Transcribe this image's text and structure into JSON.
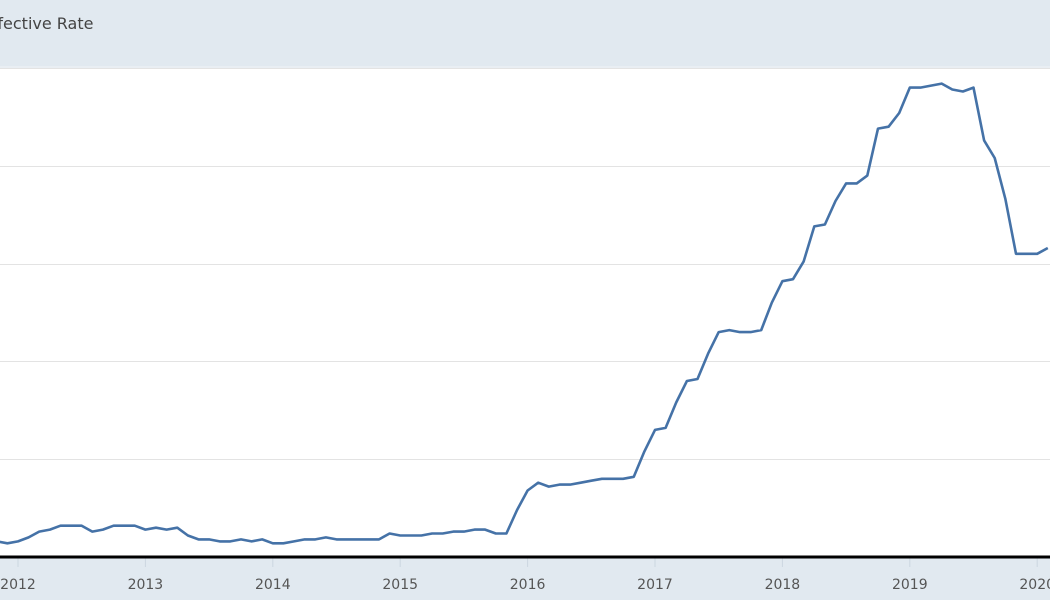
{
  "header": {
    "title": "ffective Rate"
  },
  "chart_data": {
    "type": "line",
    "title": "ffective Rate",
    "xlabel": "",
    "ylabel": "",
    "ylim": [
      0,
      2.5
    ],
    "y_gridlines": [
      0.5,
      1.0,
      1.5,
      2.0,
      2.5
    ],
    "grid": true,
    "line_color": "#4572a7",
    "x_ticks": [
      "2012",
      "2013",
      "2014",
      "2015",
      "2016",
      "2017",
      "2018",
      "2019",
      "2020"
    ],
    "series": [
      {
        "x": [
          "2011-11",
          "2011-12",
          "2012-01",
          "2012-02",
          "2012-03",
          "2012-04",
          "2012-05",
          "2012-06",
          "2012-07",
          "2012-08",
          "2012-09",
          "2012-10",
          "2012-11",
          "2012-12",
          "2013-01",
          "2013-02",
          "2013-03",
          "2013-04",
          "2013-05",
          "2013-06",
          "2013-07",
          "2013-08",
          "2013-09",
          "2013-10",
          "2013-11",
          "2013-12",
          "2014-01",
          "2014-02",
          "2014-03",
          "2014-04",
          "2014-05",
          "2014-06",
          "2014-07",
          "2014-08",
          "2014-09",
          "2014-10",
          "2014-11",
          "2014-12",
          "2015-01",
          "2015-02",
          "2015-03",
          "2015-04",
          "2015-05",
          "2015-06",
          "2015-07",
          "2015-08",
          "2015-09",
          "2015-10",
          "2015-11",
          "2015-12",
          "2016-01",
          "2016-02",
          "2016-03",
          "2016-04",
          "2016-05",
          "2016-06",
          "2016-07",
          "2016-08",
          "2016-09",
          "2016-10",
          "2016-11",
          "2016-12",
          "2017-01",
          "2017-02",
          "2017-03",
          "2017-04",
          "2017-05",
          "2017-06",
          "2017-07",
          "2017-08",
          "2017-09",
          "2017-10",
          "2017-11",
          "2017-12",
          "2018-01",
          "2018-02",
          "2018-03",
          "2018-04",
          "2018-05",
          "2018-06",
          "2018-07",
          "2018-08",
          "2018-09",
          "2018-10",
          "2018-11",
          "2018-12",
          "2019-01",
          "2019-02",
          "2019-03",
          "2019-04",
          "2019-05",
          "2019-06",
          "2019-07",
          "2019-08",
          "2019-09",
          "2019-10",
          "2019-11",
          "2019-12",
          "2020-01",
          "2020-02"
        ],
        "values": [
          0.08,
          0.07,
          0.08,
          0.1,
          0.13,
          0.14,
          0.16,
          0.16,
          0.16,
          0.13,
          0.14,
          0.16,
          0.16,
          0.16,
          0.14,
          0.15,
          0.14,
          0.15,
          0.11,
          0.09,
          0.09,
          0.08,
          0.08,
          0.09,
          0.08,
          0.09,
          0.07,
          0.07,
          0.08,
          0.09,
          0.09,
          0.1,
          0.09,
          0.09,
          0.09,
          0.09,
          0.09,
          0.12,
          0.11,
          0.11,
          0.11,
          0.12,
          0.12,
          0.13,
          0.13,
          0.14,
          0.14,
          0.12,
          0.12,
          0.24,
          0.34,
          0.38,
          0.36,
          0.37,
          0.37,
          0.38,
          0.39,
          0.4,
          0.4,
          0.4,
          0.41,
          0.54,
          0.65,
          0.66,
          0.79,
          0.9,
          0.91,
          1.04,
          1.15,
          1.16,
          1.15,
          1.15,
          1.16,
          1.3,
          1.41,
          1.42,
          1.51,
          1.69,
          1.7,
          1.82,
          1.91,
          1.91,
          1.95,
          2.19,
          2.2,
          2.27,
          2.4,
          2.4,
          2.41,
          2.42,
          2.39,
          2.38,
          2.4,
          2.13,
          2.04,
          1.83,
          1.55,
          1.55,
          1.55,
          1.58
        ]
      }
    ]
  }
}
